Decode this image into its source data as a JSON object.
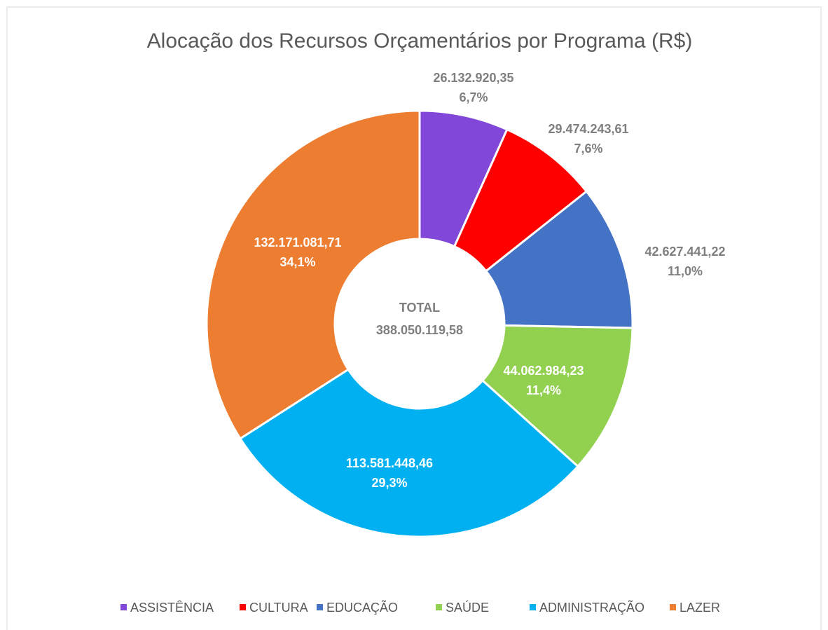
{
  "chart_data": {
    "type": "donut",
    "title": "Alocação dos Recursos Orçamentários por Programa (R$)",
    "categories": [
      "ASSISTÊNCIA",
      "CULTURA",
      "EDUCAÇÃO",
      "SAÚDE",
      "ADMINISTRAÇÃO",
      "LAZER"
    ],
    "values": [
      26132920.35,
      29474243.61,
      42627441.22,
      44062984.23,
      113581448.46,
      132171081.71
    ],
    "value_labels": [
      "26.132.920,35",
      "29.474.243,61",
      "42.627.441,22",
      "44.062.984,23",
      "113.581.448,46",
      "132.171.081,71"
    ],
    "percent_labels": [
      "6,7%",
      "7,6%",
      "11,0%",
      "11,4%",
      "29,3%",
      "34,1%"
    ],
    "colors": [
      "#8047d8",
      "#ff0000",
      "#4472c4",
      "#92d050",
      "#00b0f0",
      "#ed7d31"
    ],
    "total": {
      "label": "TOTAL",
      "value": 388050119.58,
      "value_label": "388.050.119,58"
    },
    "legend": "bottom"
  }
}
